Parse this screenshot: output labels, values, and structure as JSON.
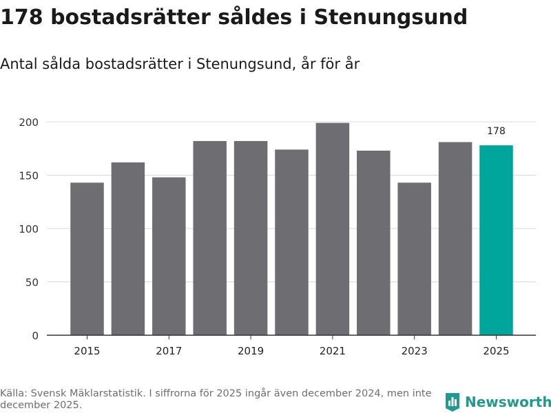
{
  "title": "178 bostadsrätter såldes i Stenungsund",
  "subtitle": "Antal sålda bostadsrätter i Stenungsund, år för år",
  "source": "Källa: Svensk Mäklarstatistik. I siffrorna för 2025 ingår även december 2024, men inte december 2025.",
  "brand": {
    "name": "Newsworthy",
    "icon": "bar-chart-logo-icon",
    "color": "#1f9a8c"
  },
  "chart_data": {
    "type": "bar",
    "title": "178 bostadsrätter såldes i Stenungsund",
    "subtitle": "Antal sålda bostadsrätter i Stenungsund, år för år",
    "xlabel": "",
    "ylabel": "",
    "categories": [
      "2015",
      "2016",
      "2017",
      "2018",
      "2019",
      "2020",
      "2021",
      "2022",
      "2023",
      "2024",
      "2025"
    ],
    "values": [
      143,
      162,
      148,
      182,
      182,
      174,
      199,
      173,
      143,
      181,
      178
    ],
    "x_tick_labels": [
      "2015",
      "2017",
      "2019",
      "2021",
      "2023",
      "2025"
    ],
    "y_ticks": [
      0,
      50,
      100,
      150,
      200
    ],
    "ylim": [
      0,
      200
    ],
    "grid": true,
    "highlight_category": "2025",
    "data_labels": [
      {
        "category": "2025",
        "text": "178"
      }
    ],
    "colors": {
      "bar": "#6e6d72",
      "highlight": "#00a69c",
      "grid": "#d9d9d9",
      "axis": "#333333"
    }
  }
}
